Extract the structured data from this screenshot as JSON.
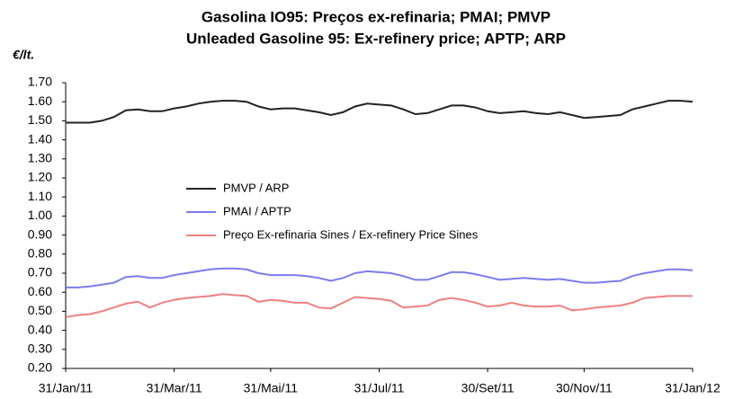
{
  "chart_data": {
    "type": "line",
    "title": "Gasolina IO95: Preços ex-refinaria; PMAI; PMVP",
    "subtitle": "Unleaded Gasoline 95: Ex-refinery price; APTP; ARP",
    "y_label": "€/lt.",
    "categories": [
      "31/Jan/11",
      null,
      null,
      null,
      null,
      null,
      null,
      null,
      null,
      "31/Mar/11",
      null,
      null,
      null,
      null,
      null,
      null,
      null,
      "31/Mai/11",
      null,
      null,
      null,
      null,
      null,
      null,
      null,
      null,
      "31/Jul/11",
      null,
      null,
      null,
      null,
      null,
      null,
      null,
      null,
      "30/Set/11",
      null,
      null,
      null,
      null,
      null,
      null,
      null,
      "30/Nov/11",
      null,
      null,
      null,
      null,
      null,
      null,
      null,
      null,
      "31/Jan/12"
    ],
    "series": [
      {
        "name": "PMVP / ARP",
        "color": "#222222",
        "values": [
          1.49,
          1.49,
          1.49,
          1.5,
          1.52,
          1.555,
          1.56,
          1.55,
          1.55,
          1.565,
          1.575,
          1.59,
          1.6,
          1.605,
          1.605,
          1.6,
          1.575,
          1.56,
          1.565,
          1.565,
          1.555,
          1.545,
          1.53,
          1.545,
          1.575,
          1.59,
          1.585,
          1.58,
          1.56,
          1.535,
          1.54,
          1.56,
          1.58,
          1.58,
          1.57,
          1.55,
          1.54,
          1.545,
          1.55,
          1.54,
          1.535,
          1.545,
          1.53,
          1.515,
          1.52,
          1.525,
          1.53,
          1.56,
          1.575,
          1.59,
          1.605,
          1.605,
          1.6
        ]
      },
      {
        "name": "PMAI / APTP",
        "color": "#7b7bf0",
        "values": [
          0.625,
          0.625,
          0.63,
          0.64,
          0.65,
          0.68,
          0.685,
          0.675,
          0.675,
          0.69,
          0.7,
          0.71,
          0.72,
          0.725,
          0.725,
          0.72,
          0.7,
          0.69,
          0.69,
          0.69,
          0.685,
          0.675,
          0.66,
          0.675,
          0.7,
          0.71,
          0.705,
          0.7,
          0.685,
          0.665,
          0.665,
          0.685,
          0.705,
          0.705,
          0.695,
          0.68,
          0.665,
          0.67,
          0.675,
          0.67,
          0.665,
          0.67,
          0.66,
          0.65,
          0.65,
          0.655,
          0.66,
          0.685,
          0.7,
          0.71,
          0.72,
          0.72,
          0.715
        ]
      },
      {
        "name": "Preço Ex-refinaria Sines / Ex-refinery Price Sines",
        "color": "#f08080",
        "values": [
          0.47,
          0.48,
          0.485,
          0.5,
          0.52,
          0.54,
          0.55,
          0.52,
          0.545,
          0.56,
          0.57,
          0.575,
          0.58,
          0.59,
          0.585,
          0.58,
          0.55,
          0.56,
          0.555,
          0.545,
          0.545,
          0.52,
          0.515,
          0.545,
          0.575,
          0.57,
          0.565,
          0.555,
          0.52,
          0.525,
          0.53,
          0.56,
          0.57,
          0.56,
          0.545,
          0.525,
          0.53,
          0.545,
          0.53,
          0.525,
          0.525,
          0.53,
          0.505,
          0.51,
          0.52,
          0.525,
          0.53,
          0.545,
          0.57,
          0.575,
          0.58,
          0.58,
          0.58
        ]
      }
    ],
    "ylim": [
      0.2,
      1.7
    ],
    "yticks": [
      {
        "value": 0.2,
        "label": "0.20"
      },
      {
        "value": 0.3,
        "label": "0.30"
      },
      {
        "value": 0.4,
        "label": "0.40"
      },
      {
        "value": 0.5,
        "label": "0.50"
      },
      {
        "value": 0.6,
        "label": "0.60"
      },
      {
        "value": 0.7,
        "label": "0.70"
      },
      {
        "value": 0.8,
        "label": "0.80"
      },
      {
        "value": 0.9,
        "label": "0.90"
      },
      {
        "value": 1.0,
        "label": "1.00"
      },
      {
        "value": 1.1,
        "label": "1.10"
      },
      {
        "value": 1.2,
        "label": "1.20"
      },
      {
        "value": 1.3,
        "label": "1.30"
      },
      {
        "value": 1.4,
        "label": "1.40"
      },
      {
        "value": 1.5,
        "label": "1.50"
      },
      {
        "value": 1.6,
        "label": "1.60"
      },
      {
        "value": 1.7,
        "label": "1.70"
      }
    ],
    "grid": false
  }
}
